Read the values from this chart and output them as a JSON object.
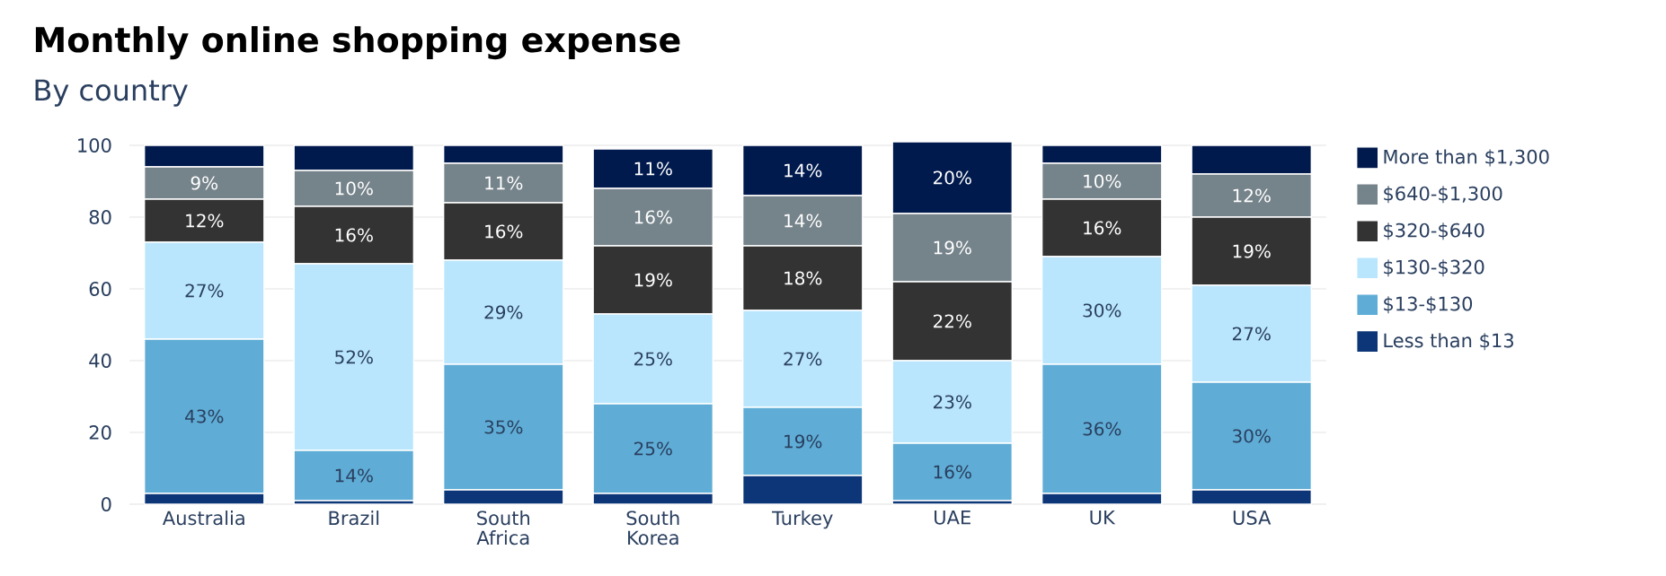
{
  "chart_data": {
    "type": "bar",
    "title": "Monthly online shopping expense",
    "subtitle": "By country",
    "categories": [
      "Australia",
      "Brazil",
      "South Africa",
      "South Korea",
      "Turkey",
      "UAE",
      "UK",
      "USA"
    ],
    "stacked": true,
    "ylim": [
      0,
      101
    ],
    "yticks": [
      0,
      20,
      40,
      60,
      80,
      100
    ],
    "grid": "y",
    "legend": "right",
    "series": [
      {
        "name": "Less than $13",
        "color": "#0c3677",
        "values": [
          3,
          1,
          4,
          3,
          8,
          1,
          3,
          4
        ],
        "value_labels": [
          null,
          null,
          null,
          null,
          null,
          null,
          null,
          null
        ]
      },
      {
        "name": "$13-$130",
        "color": "#5fadd6",
        "values": [
          43,
          14,
          35,
          25,
          19,
          16,
          36,
          30
        ],
        "value_labels": [
          "43%",
          "14%",
          "35%",
          "25%",
          "19%",
          "16%",
          "36%",
          "30%"
        ]
      },
      {
        "name": "$130-$320",
        "color": "#b9e6fd",
        "values": [
          27,
          52,
          29,
          25,
          27,
          23,
          30,
          27
        ],
        "value_labels": [
          "27%",
          "52%",
          "29%",
          "25%",
          "27%",
          "23%",
          "30%",
          "27%"
        ]
      },
      {
        "name": "$320-$640",
        "color": "#333333",
        "values": [
          12,
          16,
          16,
          19,
          18,
          22,
          16,
          19
        ],
        "value_labels": [
          "12%",
          "16%",
          "16%",
          "19%",
          "18%",
          "22%",
          "16%",
          "19%"
        ]
      },
      {
        "name": "$640-$1,300",
        "color": "#75838a",
        "values": [
          9,
          10,
          11,
          16,
          14,
          19,
          10,
          12
        ],
        "value_labels": [
          "9%",
          "10%",
          "11%",
          "16%",
          "14%",
          "19%",
          "10%",
          "12%"
        ]
      },
      {
        "name": "More than $1,300",
        "color": "#011a4d",
        "values": [
          6,
          7,
          5,
          11,
          14,
          20,
          5,
          8
        ],
        "value_labels": [
          null,
          null,
          null,
          "11%",
          "14%",
          "20%",
          null,
          null
        ]
      }
    ]
  }
}
